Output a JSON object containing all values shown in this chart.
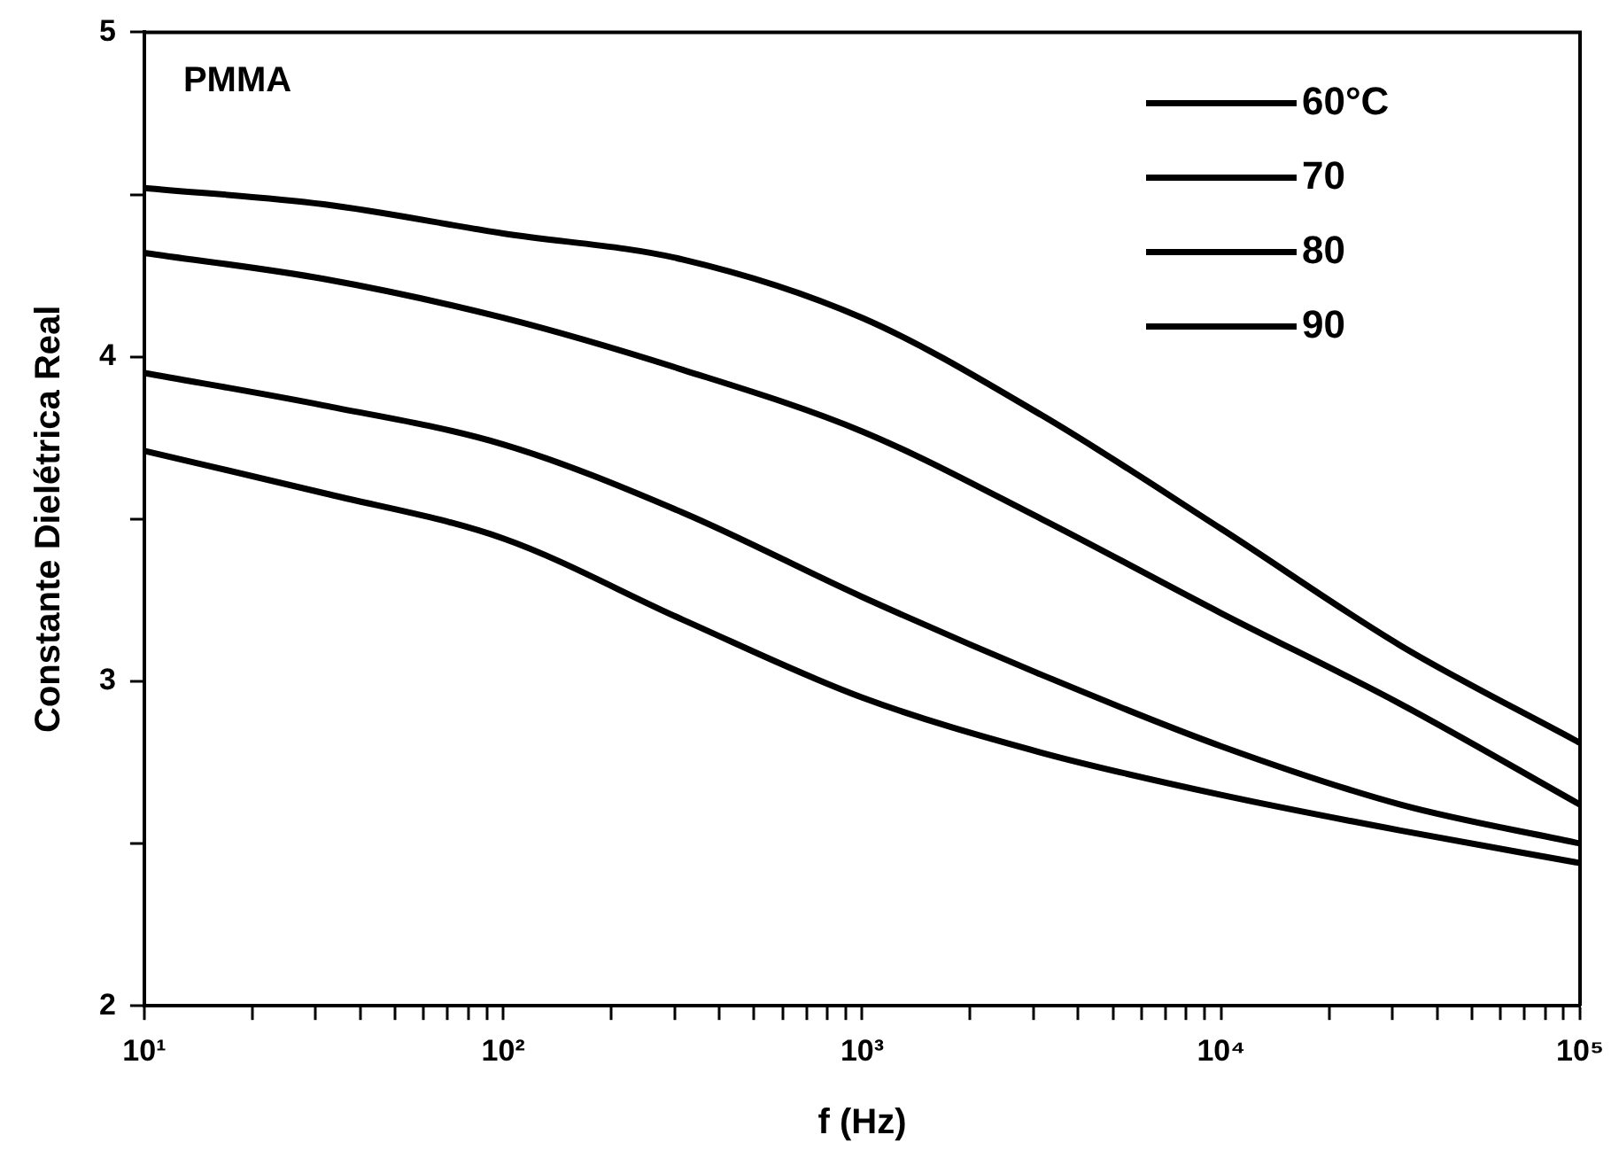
{
  "chart_data": {
    "type": "line",
    "xlabel": "f (Hz)",
    "ylabel": "Constante Dielétrica Real",
    "annotations": [
      "PMMA"
    ],
    "x": [
      10,
      31.6,
      100,
      316,
      1000,
      3162,
      10000,
      31623,
      100000
    ],
    "series": [
      {
        "name": "60°C",
        "color": "#000000",
        "values": [
          4.52,
          4.47,
          4.38,
          4.3,
          4.12,
          3.82,
          3.47,
          3.11,
          2.81
        ]
      },
      {
        "name": "70",
        "color": "#000000",
        "values": [
          4.32,
          4.24,
          4.12,
          3.96,
          3.77,
          3.5,
          3.21,
          2.93,
          2.62
        ]
      },
      {
        "name": "80",
        "color": "#000000",
        "values": [
          3.95,
          3.85,
          3.73,
          3.52,
          3.26,
          3.02,
          2.8,
          2.62,
          2.5
        ]
      },
      {
        "name": "90",
        "color": "#000000",
        "values": [
          3.71,
          3.58,
          3.44,
          3.19,
          2.95,
          2.78,
          2.65,
          2.54,
          2.44
        ]
      }
    ],
    "log": "x",
    "xlim": [
      10,
      100000
    ],
    "xticks": [
      {
        "value": 10,
        "label": "10¹"
      },
      {
        "value": 20,
        "label": null
      },
      {
        "value": 30,
        "label": null
      },
      {
        "value": 40,
        "label": null
      },
      {
        "value": 50,
        "label": null
      },
      {
        "value": 60,
        "label": null
      },
      {
        "value": 70,
        "label": null
      },
      {
        "value": 80,
        "label": null
      },
      {
        "value": 90,
        "label": null
      },
      {
        "value": 100,
        "label": "10²"
      },
      {
        "value": 200,
        "label": null
      },
      {
        "value": 300,
        "label": null
      },
      {
        "value": 400,
        "label": null
      },
      {
        "value": 500,
        "label": null
      },
      {
        "value": 600,
        "label": null
      },
      {
        "value": 700,
        "label": null
      },
      {
        "value": 800,
        "label": null
      },
      {
        "value": 900,
        "label": null
      },
      {
        "value": 1000,
        "label": "10³"
      },
      {
        "value": 2000,
        "label": null
      },
      {
        "value": 3000,
        "label": null
      },
      {
        "value": 4000,
        "label": null
      },
      {
        "value": 5000,
        "label": null
      },
      {
        "value": 6000,
        "label": null
      },
      {
        "value": 7000,
        "label": null
      },
      {
        "value": 8000,
        "label": null
      },
      {
        "value": 9000,
        "label": null
      },
      {
        "value": 10000,
        "label": "10⁴"
      },
      {
        "value": 20000,
        "label": null
      },
      {
        "value": 30000,
        "label": null
      },
      {
        "value": 40000,
        "label": null
      },
      {
        "value": 50000,
        "label": null
      },
      {
        "value": 60000,
        "label": null
      },
      {
        "value": 70000,
        "label": null
      },
      {
        "value": 80000,
        "label": null
      },
      {
        "value": 90000,
        "label": null
      },
      {
        "value": 100000,
        "label": "10⁵"
      }
    ],
    "ylim": [
      2,
      5
    ],
    "yticks": [
      2,
      {
        "value": 2.5,
        "label": null
      },
      3,
      {
        "value": 3.5,
        "label": null
      },
      4,
      {
        "value": 4.5,
        "label": null
      },
      5
    ],
    "grid": false,
    "legend": "top right",
    "marker": "none",
    "line_style": "solid"
  }
}
